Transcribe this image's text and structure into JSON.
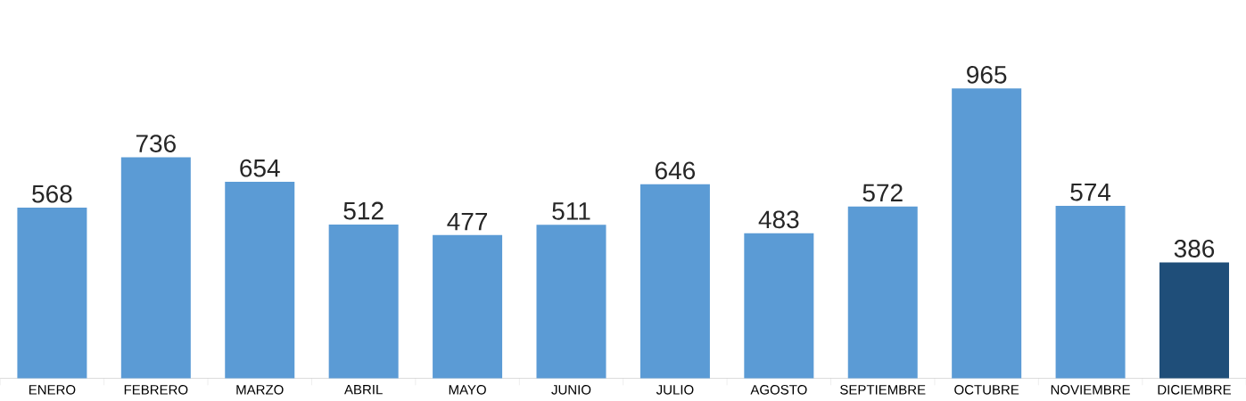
{
  "chart_data": {
    "type": "bar",
    "categories": [
      "ENERO",
      "FEBRERO",
      "MARZO",
      "ABRIL",
      "MAYO",
      "JUNIO",
      "JULIO",
      "AGOSTO",
      "SEPTIEMBRE",
      "OCTUBRE",
      "NOVIEMBRE",
      "DICIEMBRE"
    ],
    "values": [
      568,
      736,
      654,
      512,
      477,
      511,
      646,
      483,
      572,
      965,
      574,
      386
    ],
    "colors": [
      "#5b9bd5",
      "#5b9bd5",
      "#5b9bd5",
      "#5b9bd5",
      "#5b9bd5",
      "#5b9bd5",
      "#5b9bd5",
      "#5b9bd5",
      "#5b9bd5",
      "#5b9bd5",
      "#5b9bd5",
      "#1f4e79"
    ],
    "data_labels": true
  }
}
